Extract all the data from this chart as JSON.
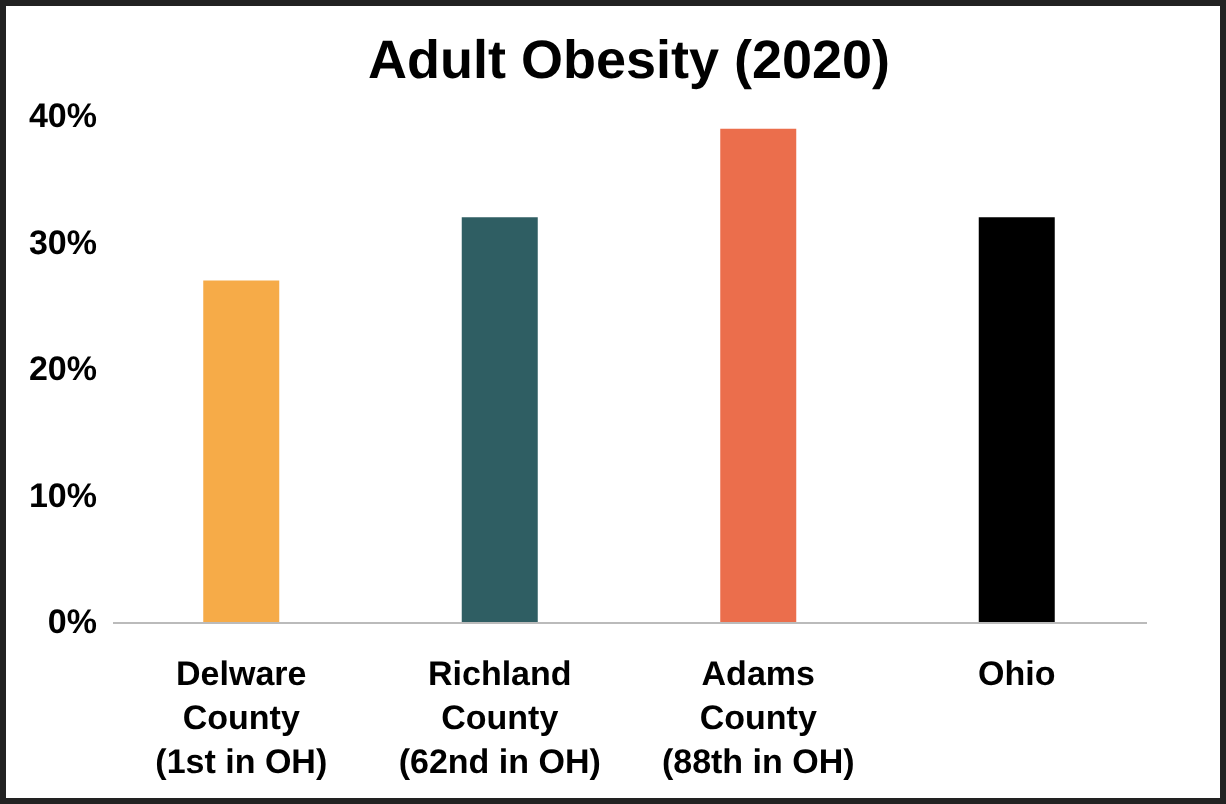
{
  "chart_data": {
    "type": "bar",
    "title": "Adult Obesity (2020)",
    "categories": [
      "Delware\nCounty\n(1st in OH)",
      "Richland\nCounty\n(62nd in OH)",
      "Adams\nCounty\n(88th in OH)",
      "Ohio"
    ],
    "values": [
      27,
      32,
      39,
      32
    ],
    "colors": [
      "#f6ab48",
      "#2f5e63",
      "#eb6e4c",
      "#000000"
    ],
    "ylim": [
      0,
      40
    ],
    "yticks": [
      {
        "value": 0,
        "label": "0%"
      },
      {
        "value": 10,
        "label": "10%"
      },
      {
        "value": 20,
        "label": "20%"
      },
      {
        "value": 30,
        "label": "30%"
      },
      {
        "value": 40,
        "label": "40%"
      }
    ],
    "grid": false,
    "legend": false
  }
}
